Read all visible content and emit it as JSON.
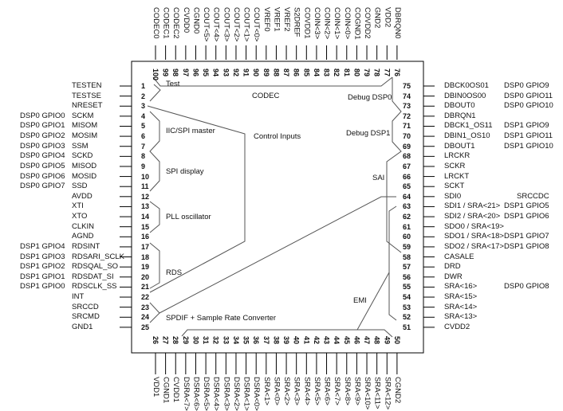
{
  "left_pins": [
    {
      "num": "1",
      "name": "TESTEN",
      "alt": ""
    },
    {
      "num": "2",
      "name": "TESTSE",
      "alt": ""
    },
    {
      "num": "3",
      "name": "NRESET",
      "alt": ""
    },
    {
      "num": "4",
      "name": "SCKM",
      "alt": "DSP0 GPIO0"
    },
    {
      "num": "5",
      "name": "MISOM",
      "alt": "DSP0 GPIO1"
    },
    {
      "num": "6",
      "name": "MOSIM",
      "alt": "DSP0 GPIO2"
    },
    {
      "num": "7",
      "name": "SSM",
      "alt": "DSP0 GPIO3"
    },
    {
      "num": "8",
      "name": "SCKD",
      "alt": "DSP0 GPIO4"
    },
    {
      "num": "9",
      "name": "MISOD",
      "alt": "DSP0 GPIO5"
    },
    {
      "num": "10",
      "name": "MOSID",
      "alt": "DSP0 GPIO6"
    },
    {
      "num": "11",
      "name": "SSD",
      "alt": "DSP0 GPIO7"
    },
    {
      "num": "12",
      "name": "AVDD",
      "alt": ""
    },
    {
      "num": "13",
      "name": "XTI",
      "alt": ""
    },
    {
      "num": "14",
      "name": "XTO",
      "alt": ""
    },
    {
      "num": "15",
      "name": "CLKIN",
      "alt": ""
    },
    {
      "num": "16",
      "name": "AGND",
      "alt": ""
    },
    {
      "num": "17",
      "name": "RDSINT",
      "alt": "DSP1 GPIO4"
    },
    {
      "num": "18",
      "name": "RDSARI_SCLK",
      "alt": "DSP1 GPIO3"
    },
    {
      "num": "19",
      "name": "RDSQAL_SO",
      "alt": "DSP1 GPIO2"
    },
    {
      "num": "20",
      "name": "RDSDAT_SI",
      "alt": "DSP1 GPIO1"
    },
    {
      "num": "21",
      "name": "RDSCLK_SS",
      "alt": "DSP1 GPIO0"
    },
    {
      "num": "22",
      "name": "INT",
      "alt": ""
    },
    {
      "num": "23",
      "name": "SRCCD",
      "alt": ""
    },
    {
      "num": "24",
      "name": "SRCMD",
      "alt": ""
    },
    {
      "num": "25",
      "name": "GND1",
      "alt": ""
    }
  ],
  "right_pins": [
    {
      "num": "75",
      "name": "DBCK0OS01",
      "alt": "DSP0 GPIO9"
    },
    {
      "num": "74",
      "name": "DBIN0OS00",
      "alt": "DSP0 GPIO11"
    },
    {
      "num": "73",
      "name": "DBOUT0",
      "alt": "DSP0 GPIO10"
    },
    {
      "num": "72",
      "name": "DBRQN1",
      "alt": ""
    },
    {
      "num": "71",
      "name": "DBCK1_OS11",
      "alt": "DSP1 GPIO9"
    },
    {
      "num": "70",
      "name": "DBIN1_OS10",
      "alt": "DSP1 GPIO11"
    },
    {
      "num": "69",
      "name": "DBOUT1",
      "alt": "DSP1 GPIO10"
    },
    {
      "num": "68",
      "name": "LRCKR",
      "alt": ""
    },
    {
      "num": "67",
      "name": "SCKR",
      "alt": ""
    },
    {
      "num": "66",
      "name": "LRCKT",
      "alt": ""
    },
    {
      "num": "65",
      "name": "SCKT",
      "alt": ""
    },
    {
      "num": "64",
      "name": "SDI0",
      "alt": "SRCCDC"
    },
    {
      "num": "63",
      "name": "SDI1  / SRA<21>",
      "alt": "DSP1 GPIO5"
    },
    {
      "num": "62",
      "name": "SDI2  / SRA<20>",
      "alt": "DSP1 GPIO6"
    },
    {
      "num": "61",
      "name": "SDO0 / SRA<19>",
      "alt": ""
    },
    {
      "num": "60",
      "name": "SDO1 / SRA<18>",
      "alt": "DSP1 GPIO7"
    },
    {
      "num": "59",
      "name": "SDO2 / SRA<17>",
      "alt": "DSP1 GPIO8"
    },
    {
      "num": "58",
      "name": "CASALE",
      "alt": ""
    },
    {
      "num": "57",
      "name": "DRD",
      "alt": ""
    },
    {
      "num": "56",
      "name": "DWR",
      "alt": ""
    },
    {
      "num": "55",
      "name": "SRA<16>",
      "alt": "DSP0 GPIO8"
    },
    {
      "num": "54",
      "name": "SRA<15>",
      "alt": ""
    },
    {
      "num": "53",
      "name": "SRA<14>",
      "alt": ""
    },
    {
      "num": "52",
      "name": "SRA<13>",
      "alt": ""
    },
    {
      "num": "51",
      "name": "CVDD2",
      "alt": ""
    }
  ],
  "top_pins": [
    {
      "num": "100",
      "name": "CODEC0"
    },
    {
      "num": "99",
      "name": "CODEC1"
    },
    {
      "num": "98",
      "name": "CODEC2"
    },
    {
      "num": "97",
      "name": "CVDD0"
    },
    {
      "num": "96",
      "name": "CGND0"
    },
    {
      "num": "95",
      "name": "COUT<5>"
    },
    {
      "num": "94",
      "name": "COUT<4>"
    },
    {
      "num": "93",
      "name": "COUT<3>"
    },
    {
      "num": "92",
      "name": "COUT<2>"
    },
    {
      "num": "91",
      "name": "COUT<1>"
    },
    {
      "num": "90",
      "name": "COUT<0>"
    },
    {
      "num": "89",
      "name": "VREF0"
    },
    {
      "num": "88",
      "name": "VREF1"
    },
    {
      "num": "87",
      "name": "VREF2"
    },
    {
      "num": "86",
      "name": "S2DREF"
    },
    {
      "num": "85",
      "name": "COVDD1"
    },
    {
      "num": "84",
      "name": "COIN<3>"
    },
    {
      "num": "83",
      "name": "COIN<2>"
    },
    {
      "num": "82",
      "name": "COIN<1>"
    },
    {
      "num": "81",
      "name": "COIN<0>"
    },
    {
      "num": "80",
      "name": "COGND1"
    },
    {
      "num": "79",
      "name": "COVDD2"
    },
    {
      "num": "78",
      "name": "GND2"
    },
    {
      "num": "77",
      "name": "VDD2"
    },
    {
      "num": "76",
      "name": "DBRQN0"
    }
  ],
  "bottom_pins": [
    {
      "num": "26",
      "name": "VDD1"
    },
    {
      "num": "27",
      "name": "CGND1"
    },
    {
      "num": "28",
      "name": "CVDD1"
    },
    {
      "num": "29",
      "name": "DSRA<7>"
    },
    {
      "num": "30",
      "name": "DSRA<6>"
    },
    {
      "num": "31",
      "name": "DSRA<5>"
    },
    {
      "num": "32",
      "name": "DSRA<4>"
    },
    {
      "num": "33",
      "name": "DSRA<3>"
    },
    {
      "num": "34",
      "name": "DSRA<2>"
    },
    {
      "num": "35",
      "name": "DSRA<1>"
    },
    {
      "num": "36",
      "name": "DSRA<0>"
    },
    {
      "num": "37",
      "name": "SRA<1>"
    },
    {
      "num": "38",
      "name": "SRA<0>"
    },
    {
      "num": "39",
      "name": "SRA<2>"
    },
    {
      "num": "40",
      "name": "SRA<3>"
    },
    {
      "num": "41",
      "name": "SRA<4>"
    },
    {
      "num": "42",
      "name": "SRA<5>"
    },
    {
      "num": "43",
      "name": "SRA<6>"
    },
    {
      "num": "44",
      "name": "SRA<7>"
    },
    {
      "num": "45",
      "name": "SRA<8>"
    },
    {
      "num": "46",
      "name": "SRA<9>"
    },
    {
      "num": "47",
      "name": "SRA<10>"
    },
    {
      "num": "48",
      "name": "SRA<11>"
    },
    {
      "num": "49",
      "name": "SRA<12>"
    },
    {
      "num": "50",
      "name": "CGND2"
    }
  ],
  "blocks": {
    "test": "Test",
    "codec": "CODEC",
    "debug_dsp0": "Debug DSP0",
    "control_inputs": "Control Inputs",
    "iic_spi": "IIC/SPI master",
    "debug_dsp1": "Debug DSP1",
    "spi_display": "SPI display",
    "sai": "SAI",
    "pll": "PLL oscillator",
    "rds": "RDS",
    "emi": "EMI",
    "spdif": "SPDIF + Sample Rate Converter"
  },
  "colors": {
    "line": "#000000",
    "group_line": "#808080"
  }
}
